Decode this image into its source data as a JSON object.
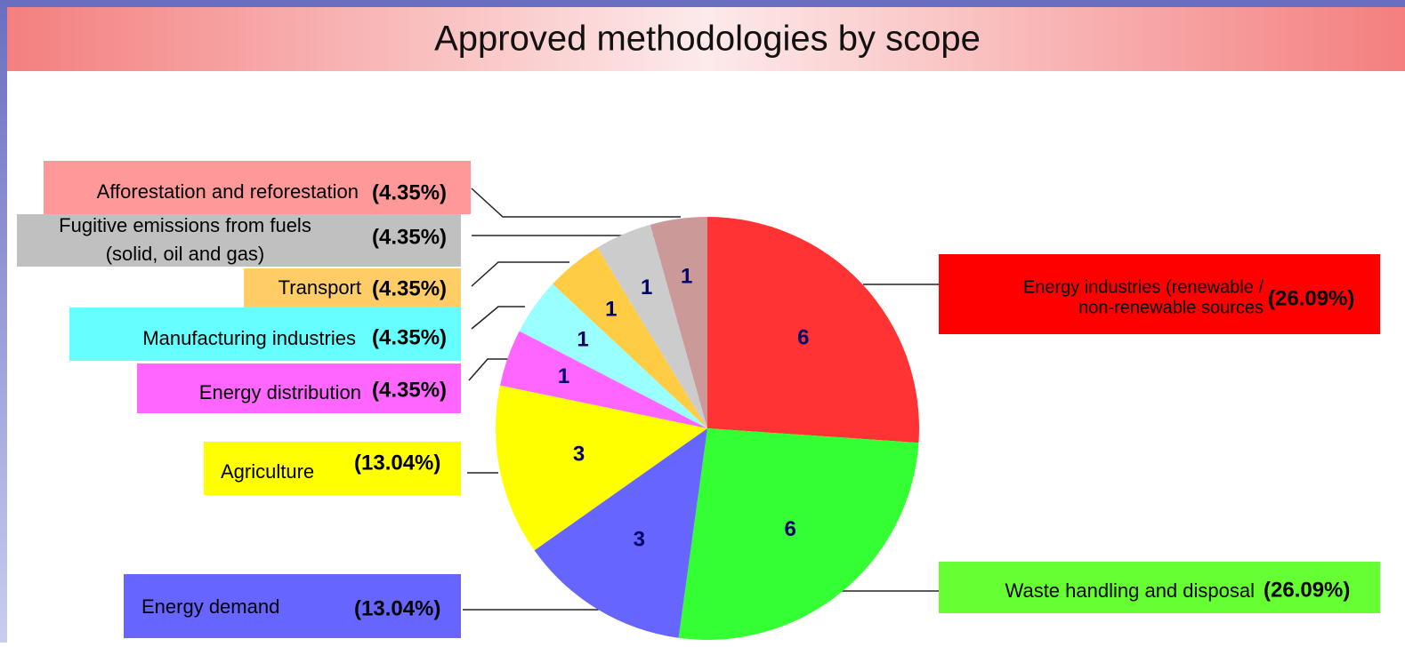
{
  "chart_data": {
    "type": "pie",
    "title": "Approved methodologies by scope",
    "categories": [
      [
        "Energy industries (renewable /",
        "non-renewable sources"
      ],
      [
        "Waste handling and disposal"
      ],
      [
        "Energy demand"
      ],
      [
        "Agriculture"
      ],
      [
        "Energy distribution"
      ],
      [
        "Manufacturing industries"
      ],
      [
        "Transport"
      ],
      [
        "Fugitive emissions from fuels",
        "(solid, oil and gas)"
      ],
      [
        "Afforestation and reforestation"
      ]
    ],
    "values": [
      6,
      6,
      3,
      3,
      1,
      1,
      1,
      1,
      1
    ],
    "percent_labels": [
      "(26.09%)",
      "(26.09%)",
      "(13.04%)",
      "(13.04%)",
      "(4.35%)",
      "(4.35%)",
      "(4.35%)",
      "(4.35%)",
      "(4.35%)"
    ],
    "colors": [
      "#ff3333",
      "#33ff33",
      "#6666ff",
      "#ffff00",
      "#ff66ff",
      "#99ffff",
      "#ffcc44",
      "#cccccc",
      "#cc9999"
    ],
    "box_colors": [
      "#ff0000",
      "#66ff33",
      "#6666ff",
      "#ffff00",
      "#ff66ff",
      "#66ffff",
      "#ffcc66",
      "#c0c0c0",
      "#ff9999"
    ]
  }
}
